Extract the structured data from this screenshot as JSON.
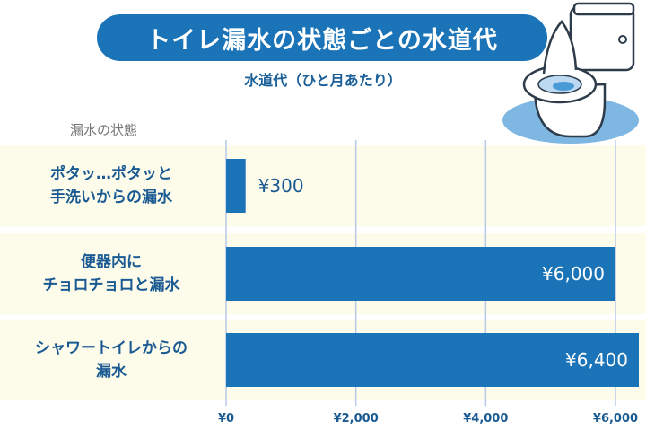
{
  "title": "トイレ漏水の状態ごとの水道代",
  "subtitle": "水道代（ひと月あたり）",
  "category_header": "漏水の状態",
  "colors": {
    "bar": "#1b74b8",
    "title_bg": "#1b74b8",
    "row_bg": "#fdfbea",
    "grid": "#b8c9e8",
    "label_text": "#1a5a92"
  },
  "chart_data": {
    "type": "bar",
    "orientation": "horizontal",
    "title": "トイレ漏水の状態ごとの水道代",
    "subtitle": "水道代（ひと月あたり）",
    "xlabel": "水道代（ひと月あたり）",
    "ylabel": "漏水の状態",
    "categories": [
      [
        "ポタッ…ポタッと",
        "手洗いからの漏水"
      ],
      [
        "便器内に",
        "チョロチョロと漏水"
      ],
      [
        "シャワートイレからの",
        "漏水"
      ]
    ],
    "values": [
      300,
      6000,
      6400
    ],
    "data_labels": [
      "¥300",
      "¥6,000",
      "¥6,400"
    ],
    "xlim": [
      0,
      6000
    ],
    "xticks": [
      0,
      2000,
      4000,
      6000
    ],
    "xtick_labels": [
      "¥0",
      "¥2,000",
      "¥4,000",
      "¥6,000"
    ],
    "grid": true
  }
}
